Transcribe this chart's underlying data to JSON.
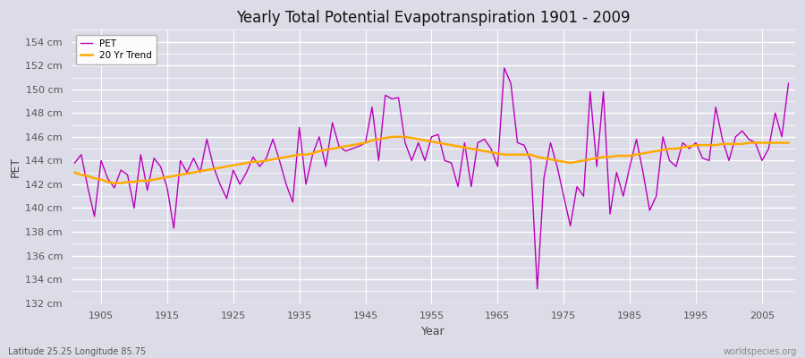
{
  "title": "Yearly Total Potential Evapotranspiration 1901 - 2009",
  "xlabel": "Year",
  "ylabel": "PET",
  "subtitle": "Latitude 25.25 Longitude 85.75",
  "watermark": "worldspecies.org",
  "fig_bg_color": "#dcdce8",
  "plot_bg_color": "#dcdce8",
  "pet_color": "#bb00bb",
  "trend_color": "#ffaa00",
  "ylim": [
    132,
    155
  ],
  "yticks": [
    132,
    134,
    136,
    138,
    140,
    142,
    144,
    146,
    148,
    150,
    152,
    154
  ],
  "xlim_left": 1901,
  "xlim_right": 2010,
  "years": [
    1901,
    1902,
    1903,
    1904,
    1905,
    1906,
    1907,
    1908,
    1909,
    1910,
    1911,
    1912,
    1913,
    1914,
    1915,
    1916,
    1917,
    1918,
    1919,
    1920,
    1921,
    1922,
    1923,
    1924,
    1925,
    1926,
    1927,
    1928,
    1929,
    1930,
    1931,
    1932,
    1933,
    1934,
    1935,
    1936,
    1937,
    1938,
    1939,
    1940,
    1941,
    1942,
    1943,
    1944,
    1945,
    1946,
    1947,
    1948,
    1949,
    1950,
    1951,
    1952,
    1953,
    1954,
    1955,
    1956,
    1957,
    1958,
    1959,
    1960,
    1961,
    1962,
    1963,
    1964,
    1965,
    1966,
    1967,
    1968,
    1969,
    1970,
    1971,
    1972,
    1973,
    1974,
    1975,
    1976,
    1977,
    1978,
    1979,
    1980,
    1981,
    1982,
    1983,
    1984,
    1985,
    1986,
    1987,
    1988,
    1989,
    1990,
    1991,
    1992,
    1993,
    1994,
    1995,
    1996,
    1997,
    1998,
    1999,
    2000,
    2001,
    2002,
    2003,
    2004,
    2005,
    2006,
    2007,
    2008,
    2009
  ],
  "pet_values": [
    143.8,
    144.5,
    141.7,
    139.3,
    144.0,
    142.5,
    141.7,
    143.2,
    142.8,
    140.0,
    144.5,
    141.5,
    144.2,
    143.5,
    141.7,
    138.3,
    144.0,
    143.0,
    144.2,
    143.0,
    145.8,
    143.5,
    142.0,
    140.8,
    143.2,
    142.0,
    143.0,
    144.3,
    143.5,
    144.2,
    145.8,
    144.0,
    142.0,
    140.5,
    146.8,
    142.0,
    144.5,
    146.0,
    143.5,
    147.2,
    145.2,
    144.8,
    145.0,
    145.2,
    145.5,
    148.5,
    144.0,
    149.5,
    149.2,
    149.3,
    145.5,
    144.0,
    145.5,
    144.0,
    146.0,
    146.2,
    144.0,
    143.8,
    141.8,
    145.5,
    141.8,
    145.5,
    145.8,
    145.0,
    143.5,
    151.8,
    150.5,
    145.5,
    145.3,
    144.0,
    133.2,
    142.5,
    145.5,
    143.5,
    141.0,
    138.5,
    141.8,
    141.0,
    149.8,
    143.5,
    149.8,
    139.5,
    143.0,
    141.0,
    143.5,
    145.8,
    143.0,
    139.8,
    141.0,
    146.0,
    144.0,
    143.5,
    145.5,
    145.0,
    145.5,
    144.2,
    144.0,
    148.5,
    145.8,
    144.0,
    146.0,
    146.5,
    145.8,
    145.5,
    144.0,
    145.0,
    148.0,
    146.0,
    150.5
  ],
  "trend_values": [
    143.0,
    142.8,
    142.7,
    142.5,
    142.4,
    142.2,
    142.1,
    142.1,
    142.2,
    142.2,
    142.3,
    142.3,
    142.4,
    142.5,
    142.6,
    142.7,
    142.8,
    142.9,
    143.0,
    143.1,
    143.2,
    143.3,
    143.4,
    143.5,
    143.6,
    143.7,
    143.8,
    143.9,
    143.9,
    144.0,
    144.1,
    144.2,
    144.3,
    144.4,
    144.5,
    144.5,
    144.6,
    144.8,
    144.9,
    145.0,
    145.1,
    145.2,
    145.3,
    145.4,
    145.5,
    145.7,
    145.8,
    145.9,
    146.0,
    146.0,
    146.0,
    145.9,
    145.8,
    145.7,
    145.6,
    145.5,
    145.4,
    145.3,
    145.2,
    145.1,
    145.0,
    144.9,
    144.8,
    144.7,
    144.6,
    144.5,
    144.5,
    144.5,
    144.5,
    144.5,
    144.3,
    144.2,
    144.1,
    144.0,
    143.9,
    143.8,
    143.9,
    144.0,
    144.1,
    144.2,
    144.3,
    144.3,
    144.4,
    144.4,
    144.4,
    144.5,
    144.6,
    144.7,
    144.8,
    144.9,
    145.0,
    145.0,
    145.1,
    145.2,
    145.3,
    145.3,
    145.3,
    145.3,
    145.4,
    145.4,
    145.4,
    145.4,
    145.5,
    145.5,
    145.5,
    145.5,
    145.5,
    145.5,
    145.5
  ]
}
